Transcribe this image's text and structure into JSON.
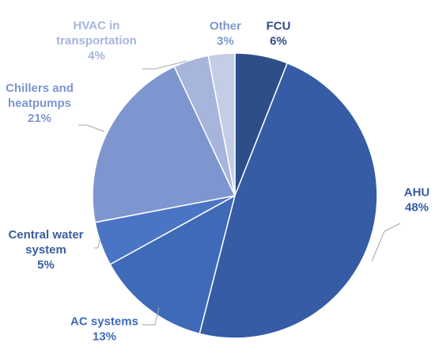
{
  "chart_data": {
    "type": "pie",
    "title": "",
    "start": "12 o'clock, clockwise",
    "slices": [
      {
        "label": "FCU",
        "lines": [
          "FCU"
        ],
        "value_label": "6%",
        "value": 6,
        "color": "#2E4E8A",
        "text_color": "#2E4E8A"
      },
      {
        "label": "AHU",
        "lines": [
          "AHU"
        ],
        "value_label": "48%",
        "value": 48,
        "color": "#355CA5",
        "text_color": "#355CA5"
      },
      {
        "label": "AC systems",
        "lines": [
          "AC systems"
        ],
        "value_label": "13%",
        "value": 13,
        "color": "#3E6AB8",
        "text_color": "#3E6AB8"
      },
      {
        "label": "Central water system",
        "lines": [
          "Central water",
          "system"
        ],
        "value_label": "5%",
        "value": 5,
        "color": "#4A75C4",
        "text_color": "#3A5E9C"
      },
      {
        "label": "Chillers and heatpumps",
        "lines": [
          "Chillers and",
          "heatpumps"
        ],
        "value_label": "21%",
        "value": 21,
        "color": "#7E96CF",
        "text_color": "#7E96CF"
      },
      {
        "label": "HVAC in transportation",
        "lines": [
          "HVAC in",
          "transportation"
        ],
        "value_label": "4%",
        "value": 4,
        "color": "#A7B5DC",
        "text_color": "#A7B5DC"
      },
      {
        "label": "Other",
        "lines": [
          "Other"
        ],
        "value_label": "3%",
        "value": 3,
        "color": "#C4CDE6",
        "text_color": "#7F97CF"
      }
    ]
  }
}
